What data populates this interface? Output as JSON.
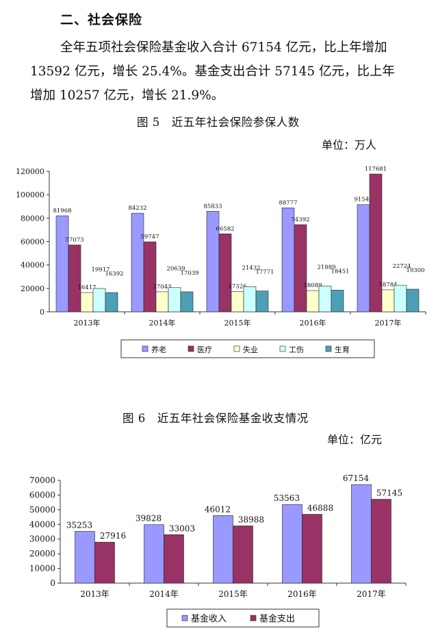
{
  "section": {
    "heading": "二、社会保险",
    "paragraph_lines": [
      "全年五项社会保险基金收入合计 67154 亿元，比上年增加",
      "13592 亿元，增长 25.4%。基金支出合计 57145 亿元，比上年",
      "增加 10257 亿元，增长 21.9%。"
    ]
  },
  "figure5": {
    "title": "图 5　近五年社会保险参保人数",
    "unit": "单位：万人"
  },
  "figure6": {
    "title": "图 6　近五年社会保险基金收支情况",
    "unit": "单位：亿元"
  },
  "colors": {
    "pension": "#9999ff",
    "medical": "#993366",
    "unemployment": "#ffffcc",
    "injury": "#ccffff",
    "maternity": "#4c9fb5",
    "income": "#9999ff",
    "expense": "#993366"
  },
  "chart_data": [
    {
      "type": "bar",
      "categories": [
        "2013年",
        "2014年",
        "2015年",
        "2016年",
        "2017年"
      ],
      "series": [
        {
          "name": "养老",
          "values": [
            81968,
            84232,
            85833,
            88777,
            91548
          ]
        },
        {
          "name": "医疗",
          "values": [
            57073,
            59747,
            66582,
            74392,
            117681
          ]
        },
        {
          "name": "失业",
          "values": [
            16417,
            17043,
            17326,
            18089,
            18784
          ]
        },
        {
          "name": "工伤",
          "values": [
            19917,
            20639,
            21432,
            21889,
            22724
          ]
        },
        {
          "name": "生育",
          "values": [
            16392,
            17039,
            17771,
            18451,
            19300
          ]
        }
      ],
      "ylim": [
        0,
        120000
      ],
      "yticks": [
        "0",
        "20000",
        "40000",
        "60000",
        "80000",
        "100000",
        "120000"
      ],
      "grid": false,
      "legend": "bottom"
    },
    {
      "type": "bar",
      "categories": [
        "2013年",
        "2014年",
        "2015年",
        "2016年",
        "2017年"
      ],
      "series": [
        {
          "name": "基金收入",
          "values": [
            35253,
            39828,
            46012,
            53563,
            67154
          ]
        },
        {
          "name": "基金支出",
          "values": [
            27916,
            33003,
            38988,
            46888,
            57145
          ]
        }
      ],
      "ylim": [
        0,
        70000
      ],
      "yticks": [
        "0",
        "10000",
        "20000",
        "30000",
        "40000",
        "50000",
        "60000",
        "70000"
      ],
      "grid": false,
      "legend": "bottom"
    }
  ]
}
